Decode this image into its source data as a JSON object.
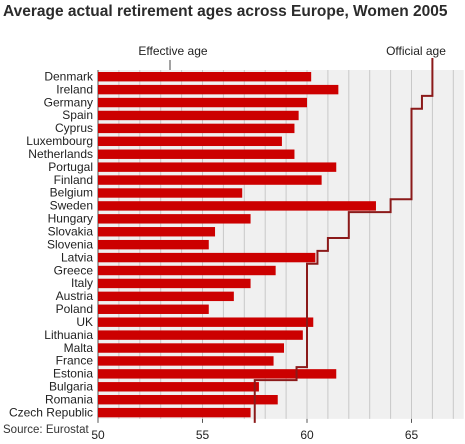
{
  "title": "Average actual retirement ages across Europe, Women 2005",
  "source": "Source: Eurostat",
  "colors": {
    "bar": "#cc0000",
    "official_line": "#8b1a1a",
    "panel_bg": "#f0f0f0",
    "grid": "#c8c8c8"
  },
  "chart_data": {
    "type": "bar",
    "orientation": "horizontal",
    "title": "Average actual retirement ages across Europe, Women 2005",
    "xlabel": "",
    "ylabel": "",
    "xlim": [
      50,
      67.5
    ],
    "x_ticks": [
      "50",
      "55",
      "60",
      "65"
    ],
    "grid": true,
    "annotations": [
      "Effective age",
      "Official age"
    ],
    "categories": [
      "Denmark",
      "Ireland",
      "Germany",
      "Spain",
      "Cyprus",
      "Luxembourg",
      "Netherlands",
      "Portugal",
      "Finland",
      "Belgium",
      "Sweden",
      "Hungary",
      "Slovakia",
      "Slovenia",
      "Latvia",
      "Greece",
      "Italy",
      "Austria",
      "Poland",
      "UK",
      "Lithuania",
      "Malta",
      "France",
      "Estonia",
      "Bulgaria",
      "Romania",
      "Czech Republic"
    ],
    "series": [
      {
        "name": "Effective age",
        "type": "bar",
        "values": [
          60.2,
          61.5,
          60.0,
          59.6,
          59.4,
          58.8,
          59.4,
          61.4,
          60.7,
          56.9,
          63.3,
          57.3,
          55.6,
          55.3,
          60.4,
          58.5,
          57.3,
          56.5,
          55.3,
          60.3,
          59.8,
          58.9,
          58.4,
          61.4,
          57.7,
          58.6,
          57.3
        ]
      },
      {
        "name": "Official age",
        "type": "step",
        "values": [
          66,
          66,
          65.5,
          65,
          65,
          65,
          65,
          65,
          65,
          65,
          64,
          62,
          62,
          61,
          60.5,
          60,
          60,
          60,
          60,
          60,
          60,
          60,
          60,
          59.5,
          57.5,
          57.5,
          57.5
        ]
      }
    ]
  }
}
